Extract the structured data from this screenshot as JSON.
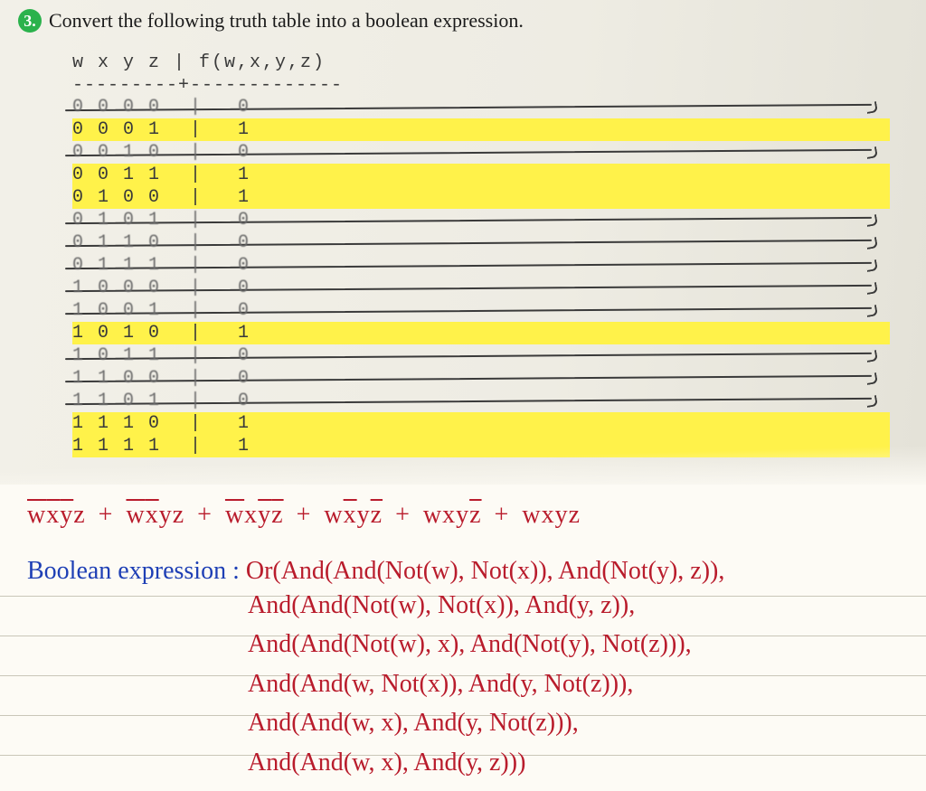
{
  "question": {
    "number": "3.",
    "text": "Convert the following truth table into a boolean expression.",
    "badge_color": "#2bb24c"
  },
  "truth_table": {
    "header": "w x y z  |  f(w,x,y,z)",
    "divider": "---------+-------------",
    "rows": [
      {
        "vars": "0 0 0 0",
        "out": "0",
        "highlight": false,
        "struck": true
      },
      {
        "vars": "0 0 0 1",
        "out": "1",
        "highlight": true,
        "struck": false
      },
      {
        "vars": "0 0 1 0",
        "out": "0",
        "highlight": false,
        "struck": true
      },
      {
        "vars": "0 0 1 1",
        "out": "1",
        "highlight": true,
        "struck": false
      },
      {
        "vars": "0 1 0 0",
        "out": "1",
        "highlight": true,
        "struck": false
      },
      {
        "vars": "0 1 0 1",
        "out": "0",
        "highlight": false,
        "struck": true
      },
      {
        "vars": "0 1 1 0",
        "out": "0",
        "highlight": false,
        "struck": true
      },
      {
        "vars": "0 1 1 1",
        "out": "0",
        "highlight": false,
        "struck": true
      },
      {
        "vars": "1 0 0 0",
        "out": "0",
        "highlight": false,
        "struck": true
      },
      {
        "vars": "1 0 0 1",
        "out": "0",
        "highlight": false,
        "struck": true
      },
      {
        "vars": "1 0 1 0",
        "out": "1",
        "highlight": true,
        "struck": false
      },
      {
        "vars": "1 0 1 1",
        "out": "0",
        "highlight": false,
        "struck": true
      },
      {
        "vars": "1 1 0 0",
        "out": "0",
        "highlight": false,
        "struck": true
      },
      {
        "vars": "1 1 0 1",
        "out": "0",
        "highlight": false,
        "struck": true
      },
      {
        "vars": "1 1 1 0",
        "out": "1",
        "highlight": true,
        "struck": false
      },
      {
        "vars": "1 1 1 1",
        "out": "1",
        "highlight": true,
        "struck": false
      }
    ]
  },
  "algebra": {
    "terms": [
      [
        {
          "t": "w",
          "ov": true
        },
        {
          "t": "x",
          "ov": true
        },
        {
          "t": "y",
          "ov": true
        },
        {
          "t": "z",
          "ov": false
        }
      ],
      [
        {
          "t": "w",
          "ov": true
        },
        {
          "t": "x",
          "ov": true
        },
        {
          "t": "y",
          "ov": false
        },
        {
          "t": "z",
          "ov": false
        }
      ],
      [
        {
          "t": "w",
          "ov": true
        },
        {
          "t": "x",
          "ov": false
        },
        {
          "t": "y",
          "ov": true
        },
        {
          "t": "z",
          "ov": true
        }
      ],
      [
        {
          "t": "w",
          "ov": false
        },
        {
          "t": "x",
          "ov": true
        },
        {
          "t": "y",
          "ov": false
        },
        {
          "t": "z",
          "ov": true
        }
      ],
      [
        {
          "t": "w",
          "ov": false
        },
        {
          "t": "x",
          "ov": false
        },
        {
          "t": "y",
          "ov": false
        },
        {
          "t": "z",
          "ov": true
        }
      ],
      [
        {
          "t": "w",
          "ov": false
        },
        {
          "t": "x",
          "ov": false
        },
        {
          "t": "y",
          "ov": false
        },
        {
          "t": "z",
          "ov": false
        }
      ]
    ]
  },
  "boolean_label": "Boolean expression : ",
  "boolean_expr": {
    "lines": [
      "Or(And(And(Not(w), Not(x)), And(Not(y), z)),",
      "And(And(Not(w), Not(x)), And(y, z)),",
      "And(And(Not(w), x), And(Not(y), Not(z))),",
      "And(And(w, Not(x)), And(y, Not(z))),",
      "And(And(w, x), And(y, Not(z))),",
      "And(And(w, x), And(y, z)))"
    ]
  },
  "colors": {
    "highlight": "#fff24a",
    "red_ink": "#b91c2c",
    "blue_ink": "#1e3fb5",
    "paper": "#fdfbf5"
  }
}
